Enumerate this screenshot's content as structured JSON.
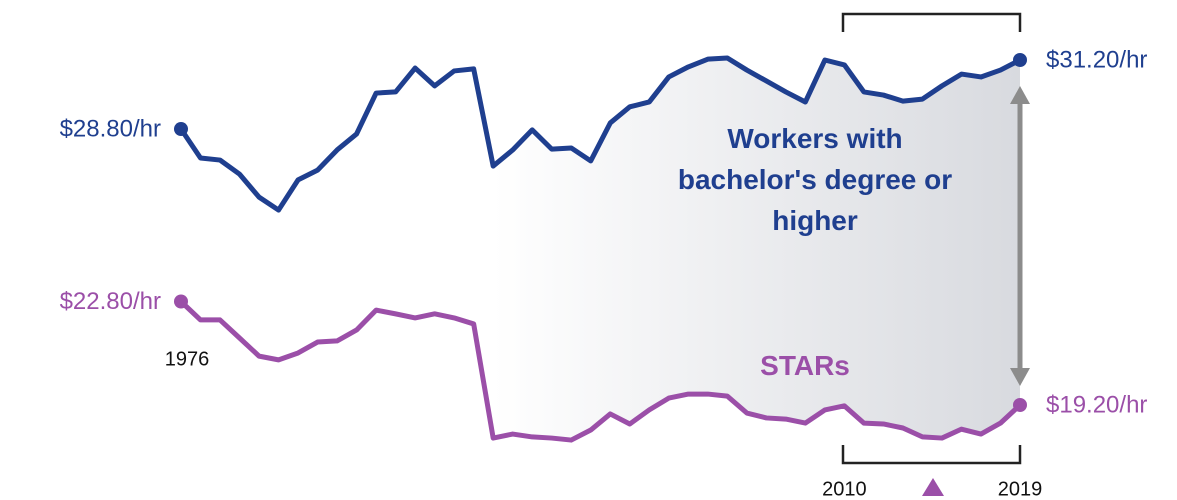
{
  "chart_data": {
    "type": "line",
    "x": [
      1976,
      1977,
      1978,
      1979,
      1980,
      1981,
      1982,
      1983,
      1984,
      1985,
      1986,
      1987,
      1988,
      1989,
      1990,
      1991,
      1992,
      1993,
      1994,
      1995,
      1996,
      1997,
      1998,
      1999,
      2000,
      2001,
      2002,
      2003,
      2004,
      2005,
      2006,
      2007,
      2008,
      2009,
      2010,
      2011,
      2012,
      2013,
      2014,
      2015,
      2016,
      2017,
      2018,
      2019
    ],
    "xlim": [
      1976,
      2019
    ],
    "xticks": [
      1976,
      2010,
      2019
    ],
    "ylim": [
      16,
      33
    ],
    "series": [
      {
        "name": "Workers with bachelor's degree or higher",
        "color": "#1f3f8f",
        "values": [
          28.8,
          27.79,
          27.72,
          27.23,
          26.43,
          25.98,
          27.03,
          27.37,
          28.07,
          28.63,
          30.05,
          30.09,
          30.92,
          30.3,
          30.82,
          30.89,
          27.51,
          28.07,
          28.77,
          28.1,
          28.14,
          27.69,
          29.01,
          29.57,
          29.74,
          30.61,
          30.96,
          31.23,
          31.27,
          30.85,
          30.47,
          30.09,
          29.74,
          31.2,
          31.03,
          30.09,
          29.98,
          29.77,
          29.84,
          30.3,
          30.71,
          30.61,
          30.85,
          31.2
        ],
        "value_labels": [
          "$28.80/hr",
          null,
          null,
          null,
          null,
          null,
          null,
          null,
          null,
          null,
          null,
          null,
          null,
          null,
          null,
          null,
          null,
          null,
          null,
          null,
          null,
          null,
          null,
          null,
          null,
          null,
          null,
          null,
          null,
          null,
          null,
          null,
          null,
          null,
          null,
          null,
          null,
          null,
          null,
          null,
          null,
          null,
          null,
          "$31.20/hr"
        ]
      },
      {
        "name": "STARs",
        "color": "#9b4fa8",
        "values": [
          22.8,
          22.16,
          22.16,
          21.53,
          20.9,
          20.77,
          21.01,
          21.39,
          21.43,
          21.81,
          22.5,
          22.37,
          22.23,
          22.37,
          22.23,
          22.02,
          18.05,
          18.19,
          18.09,
          18.05,
          17.98,
          18.33,
          18.89,
          18.54,
          19.03,
          19.44,
          19.58,
          19.58,
          19.51,
          18.92,
          18.75,
          18.71,
          18.57,
          19.03,
          19.17,
          18.57,
          18.54,
          18.4,
          18.09,
          18.05,
          18.36,
          18.19,
          18.57,
          19.2
        ],
        "value_labels": [
          "$22.80/hr",
          null,
          null,
          null,
          null,
          null,
          null,
          null,
          null,
          null,
          null,
          null,
          null,
          null,
          null,
          null,
          null,
          null,
          null,
          null,
          null,
          null,
          null,
          null,
          null,
          null,
          null,
          null,
          null,
          null,
          null,
          null,
          null,
          null,
          null,
          null,
          null,
          null,
          null,
          null,
          null,
          null,
          null,
          "$19.20/hr"
        ]
      }
    ]
  }
}
